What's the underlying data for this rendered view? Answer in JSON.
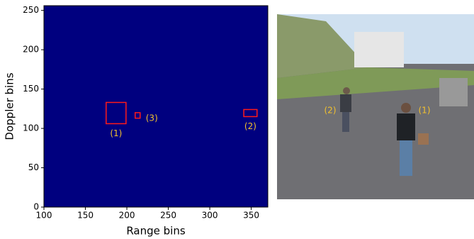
{
  "chart_data": {
    "type": "heatmap",
    "xlabel": "Range bins",
    "ylabel": "Doppler bins",
    "xlim": [
      100,
      370
    ],
    "ylim": [
      0,
      256
    ],
    "xticks": [
      100,
      150,
      200,
      250,
      300,
      350
    ],
    "yticks": [
      0,
      50,
      100,
      150,
      200,
      250
    ],
    "background": "#00007f",
    "boxes": [
      {
        "label": "(1)",
        "x": [
          175,
          199
        ],
        "y": [
          106,
          133
        ],
        "color": "#ff1a1a"
      },
      {
        "label": "(2)",
        "x": [
          341,
          357
        ],
        "y": [
          115,
          124
        ],
        "color": "#ff1a1a"
      },
      {
        "label": "(3)",
        "x": [
          210,
          216
        ],
        "y": [
          113,
          120
        ],
        "color": "#ff1a1a"
      }
    ],
    "label_color": "#f2c12e"
  },
  "photo": {
    "labels": [
      "(2)",
      "(1)"
    ]
  }
}
